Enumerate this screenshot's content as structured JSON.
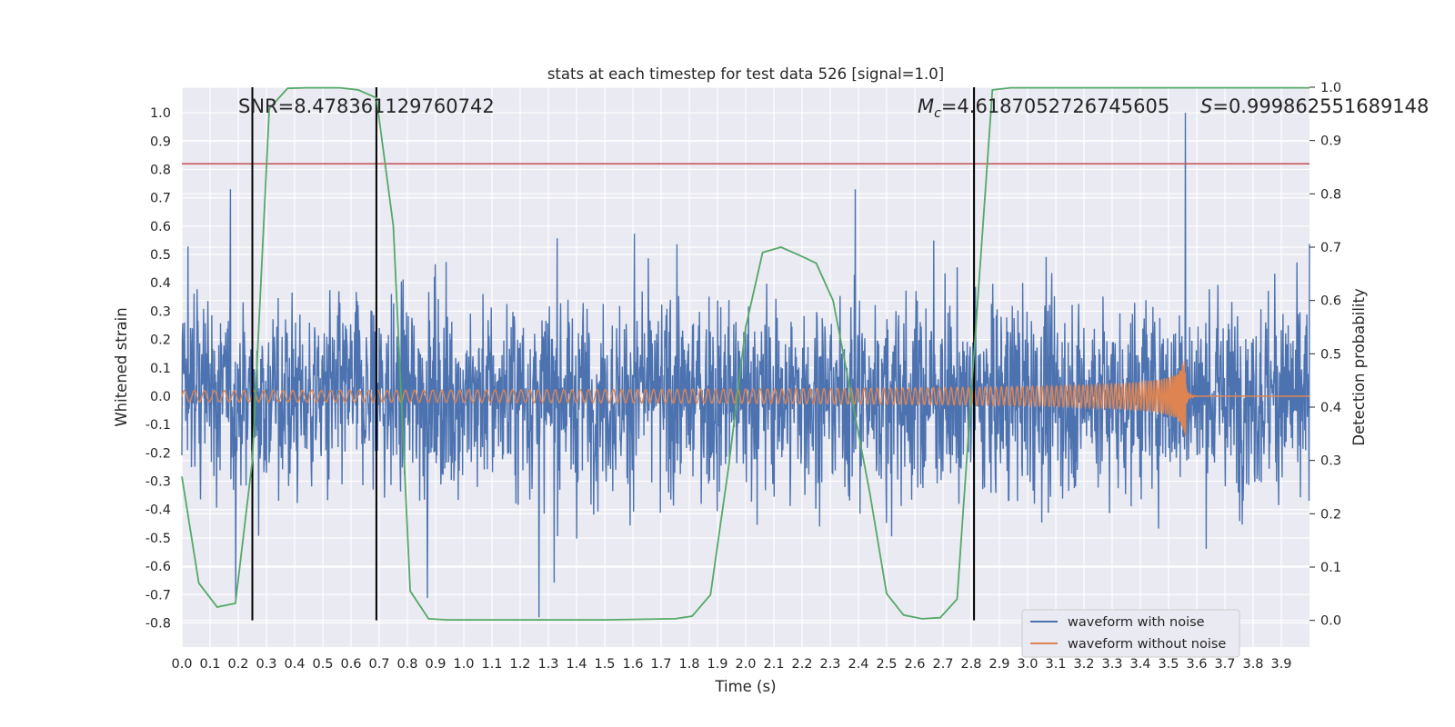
{
  "chart_data": {
    "type": "line",
    "title": "stats at each timestep for test data 526 [signal=1.0]",
    "xlabel": "Time (s)",
    "ylabel": "Whitened strain",
    "y2label": "Detection probability",
    "xlim": [
      0.0,
      4.0
    ],
    "ylim": [
      -0.885,
      1.09
    ],
    "y2lim": [
      -0.05,
      1.0
    ],
    "x_ticks": [
      "0.0",
      "0.1",
      "0.2",
      "0.3",
      "0.4",
      "0.5",
      "0.6",
      "0.7",
      "0.8",
      "0.9",
      "1.0",
      "1.1",
      "1.2",
      "1.3",
      "1.4",
      "1.5",
      "1.6",
      "1.7",
      "1.8",
      "1.9",
      "2.0",
      "2.1",
      "2.2",
      "2.3",
      "2.4",
      "2.5",
      "2.6",
      "2.7",
      "2.8",
      "2.9",
      "3.0",
      "3.1",
      "3.2",
      "3.3",
      "3.4",
      "3.5",
      "3.6",
      "3.7",
      "3.8",
      "3.9"
    ],
    "y_ticks": [
      "1.0",
      "0.9",
      "0.8",
      "0.7",
      "0.6",
      "0.5",
      "0.4",
      "0.3",
      "0.2",
      "0.1",
      "0.0",
      "-0.1",
      "-0.2",
      "-0.3",
      "-0.4",
      "-0.5",
      "-0.6",
      "-0.7",
      "-0.8"
    ],
    "y2_ticks": [
      "1.0",
      "0.9",
      "0.8",
      "0.7",
      "0.6",
      "0.5",
      "0.4",
      "0.3",
      "0.2",
      "0.1",
      "0.0"
    ],
    "grid": true,
    "legend_position": "lower-right",
    "annotations": {
      "snr": "SNR=8.478361129760742",
      "mc_symbol": "M",
      "mc_sub": "c",
      "mc_value": "=4.6187052726745605",
      "s_symbol": "S",
      "s_value": "=0.999862551689148"
    },
    "vertical_lines_x": [
      0.25,
      0.69,
      2.81
    ],
    "threshold_y": 0.82,
    "merger_time": 3.56,
    "series": [
      {
        "name": "waveform with noise",
        "color": "#4c72b0",
        "description_only": true,
        "amplitude_range": [
          -0.79,
          1.0
        ]
      },
      {
        "name": "waveform without noise",
        "color": "#dd8452",
        "peak_amplitude": 0.14
      }
    ],
    "detection_probability": {
      "color": "#55a868",
      "x": [
        0.0,
        0.06,
        0.125,
        0.19,
        0.25,
        0.31,
        0.375,
        0.44,
        0.5,
        0.56,
        0.625,
        0.69,
        0.75,
        0.81,
        0.875,
        0.94,
        1.0,
        1.5,
        1.75,
        1.81,
        1.875,
        1.94,
        2.0,
        2.06,
        2.125,
        2.19,
        2.25,
        2.31,
        2.375,
        2.44,
        2.5,
        2.56,
        2.625,
        2.69,
        2.75,
        2.81,
        2.875,
        2.94,
        3.0,
        3.5,
        4.0
      ],
      "y": [
        0.27,
        0.07,
        0.025,
        0.032,
        0.3,
        0.96,
        0.998,
        0.999,
        0.999,
        0.999,
        0.995,
        0.98,
        0.74,
        0.055,
        0.003,
        0.001,
        0.001,
        0.001,
        0.003,
        0.008,
        0.048,
        0.29,
        0.55,
        0.69,
        0.7,
        0.685,
        0.67,
        0.6,
        0.42,
        0.24,
        0.05,
        0.01,
        0.003,
        0.005,
        0.04,
        0.5,
        0.995,
        0.999,
        0.999,
        0.999,
        0.999
      ]
    },
    "legend": [
      "waveform with noise",
      "waveform without noise"
    ]
  }
}
